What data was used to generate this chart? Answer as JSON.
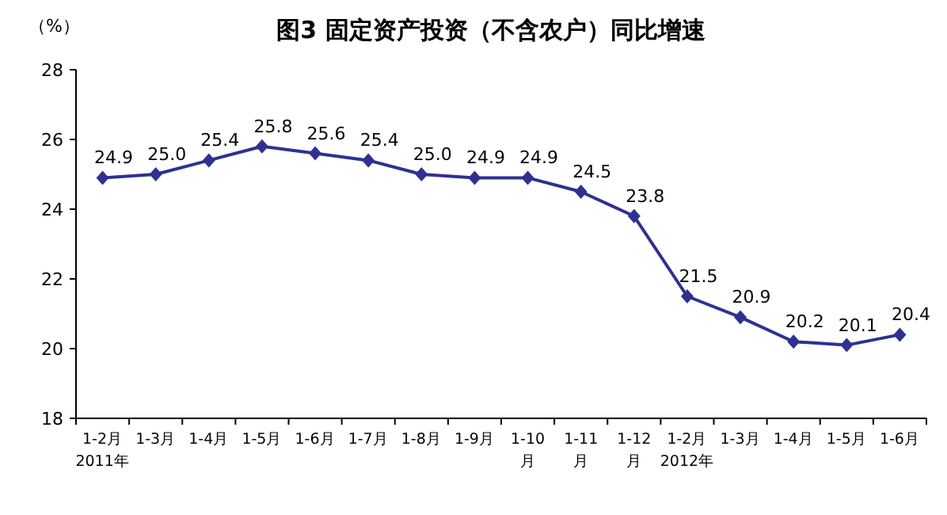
{
  "chart_data": {
    "type": "line",
    "title": "图3 固定资产投资（不含农户）同比增速",
    "ylabel": "（%）",
    "categories": [
      "1-2月\n2011年",
      "1-3月",
      "1-4月",
      "1-5月",
      "1-6月",
      "1-7月",
      "1-8月",
      "1-9月",
      "1-10\n月",
      "1-11\n月",
      "1-12\n月",
      "1-2月\n2012年",
      "1-3月",
      "1-4月",
      "1-5月",
      "1-6月"
    ],
    "series": [
      {
        "color": "#2e3192",
        "values": [
          24.9,
          25.0,
          25.4,
          25.8,
          25.6,
          25.4,
          25.0,
          24.9,
          24.9,
          24.5,
          23.8,
          21.5,
          20.9,
          20.2,
          20.1,
          20.4
        ],
        "value_labels": [
          "24.9",
          "25.0",
          "25.4",
          "25.8",
          "25.6",
          "25.4",
          "25.0",
          "24.9",
          "24.9",
          "24.5",
          "23.8",
          "21.5",
          "20.9",
          "20.2",
          "20.1",
          "20.4"
        ]
      }
    ],
    "ylim": [
      18,
      28
    ],
    "yticks": [
      18,
      20,
      22,
      24,
      26,
      28
    ],
    "marker": "diamond"
  }
}
